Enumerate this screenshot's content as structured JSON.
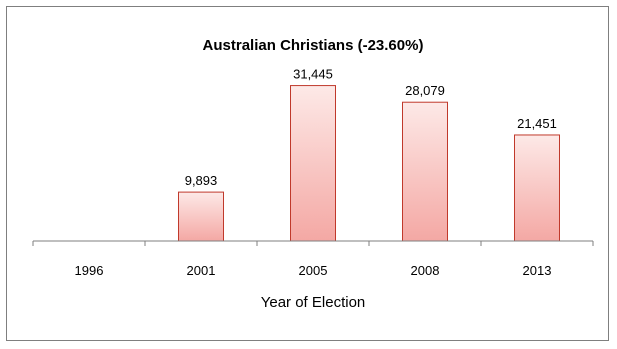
{
  "chart_data": {
    "type": "bar",
    "title": "Australian Christians (-23.60%)",
    "categories": [
      "1996",
      "2001",
      "2005",
      "2008",
      "2013"
    ],
    "values": [
      null,
      9893,
      31445,
      28079,
      21451
    ],
    "data_labels": [
      "",
      "9,893",
      "31,445",
      "28,079",
      "21,451"
    ],
    "xlabel": "Year of Election",
    "ylabel": "",
    "ylim": [
      0,
      35000
    ],
    "grid": false,
    "legend": "none",
    "colors": {
      "bar_top": "#fde9e7",
      "bar_bottom": "#f4a8a4",
      "bar_border": "#c0392b",
      "axis": "#7f7f7f"
    }
  }
}
